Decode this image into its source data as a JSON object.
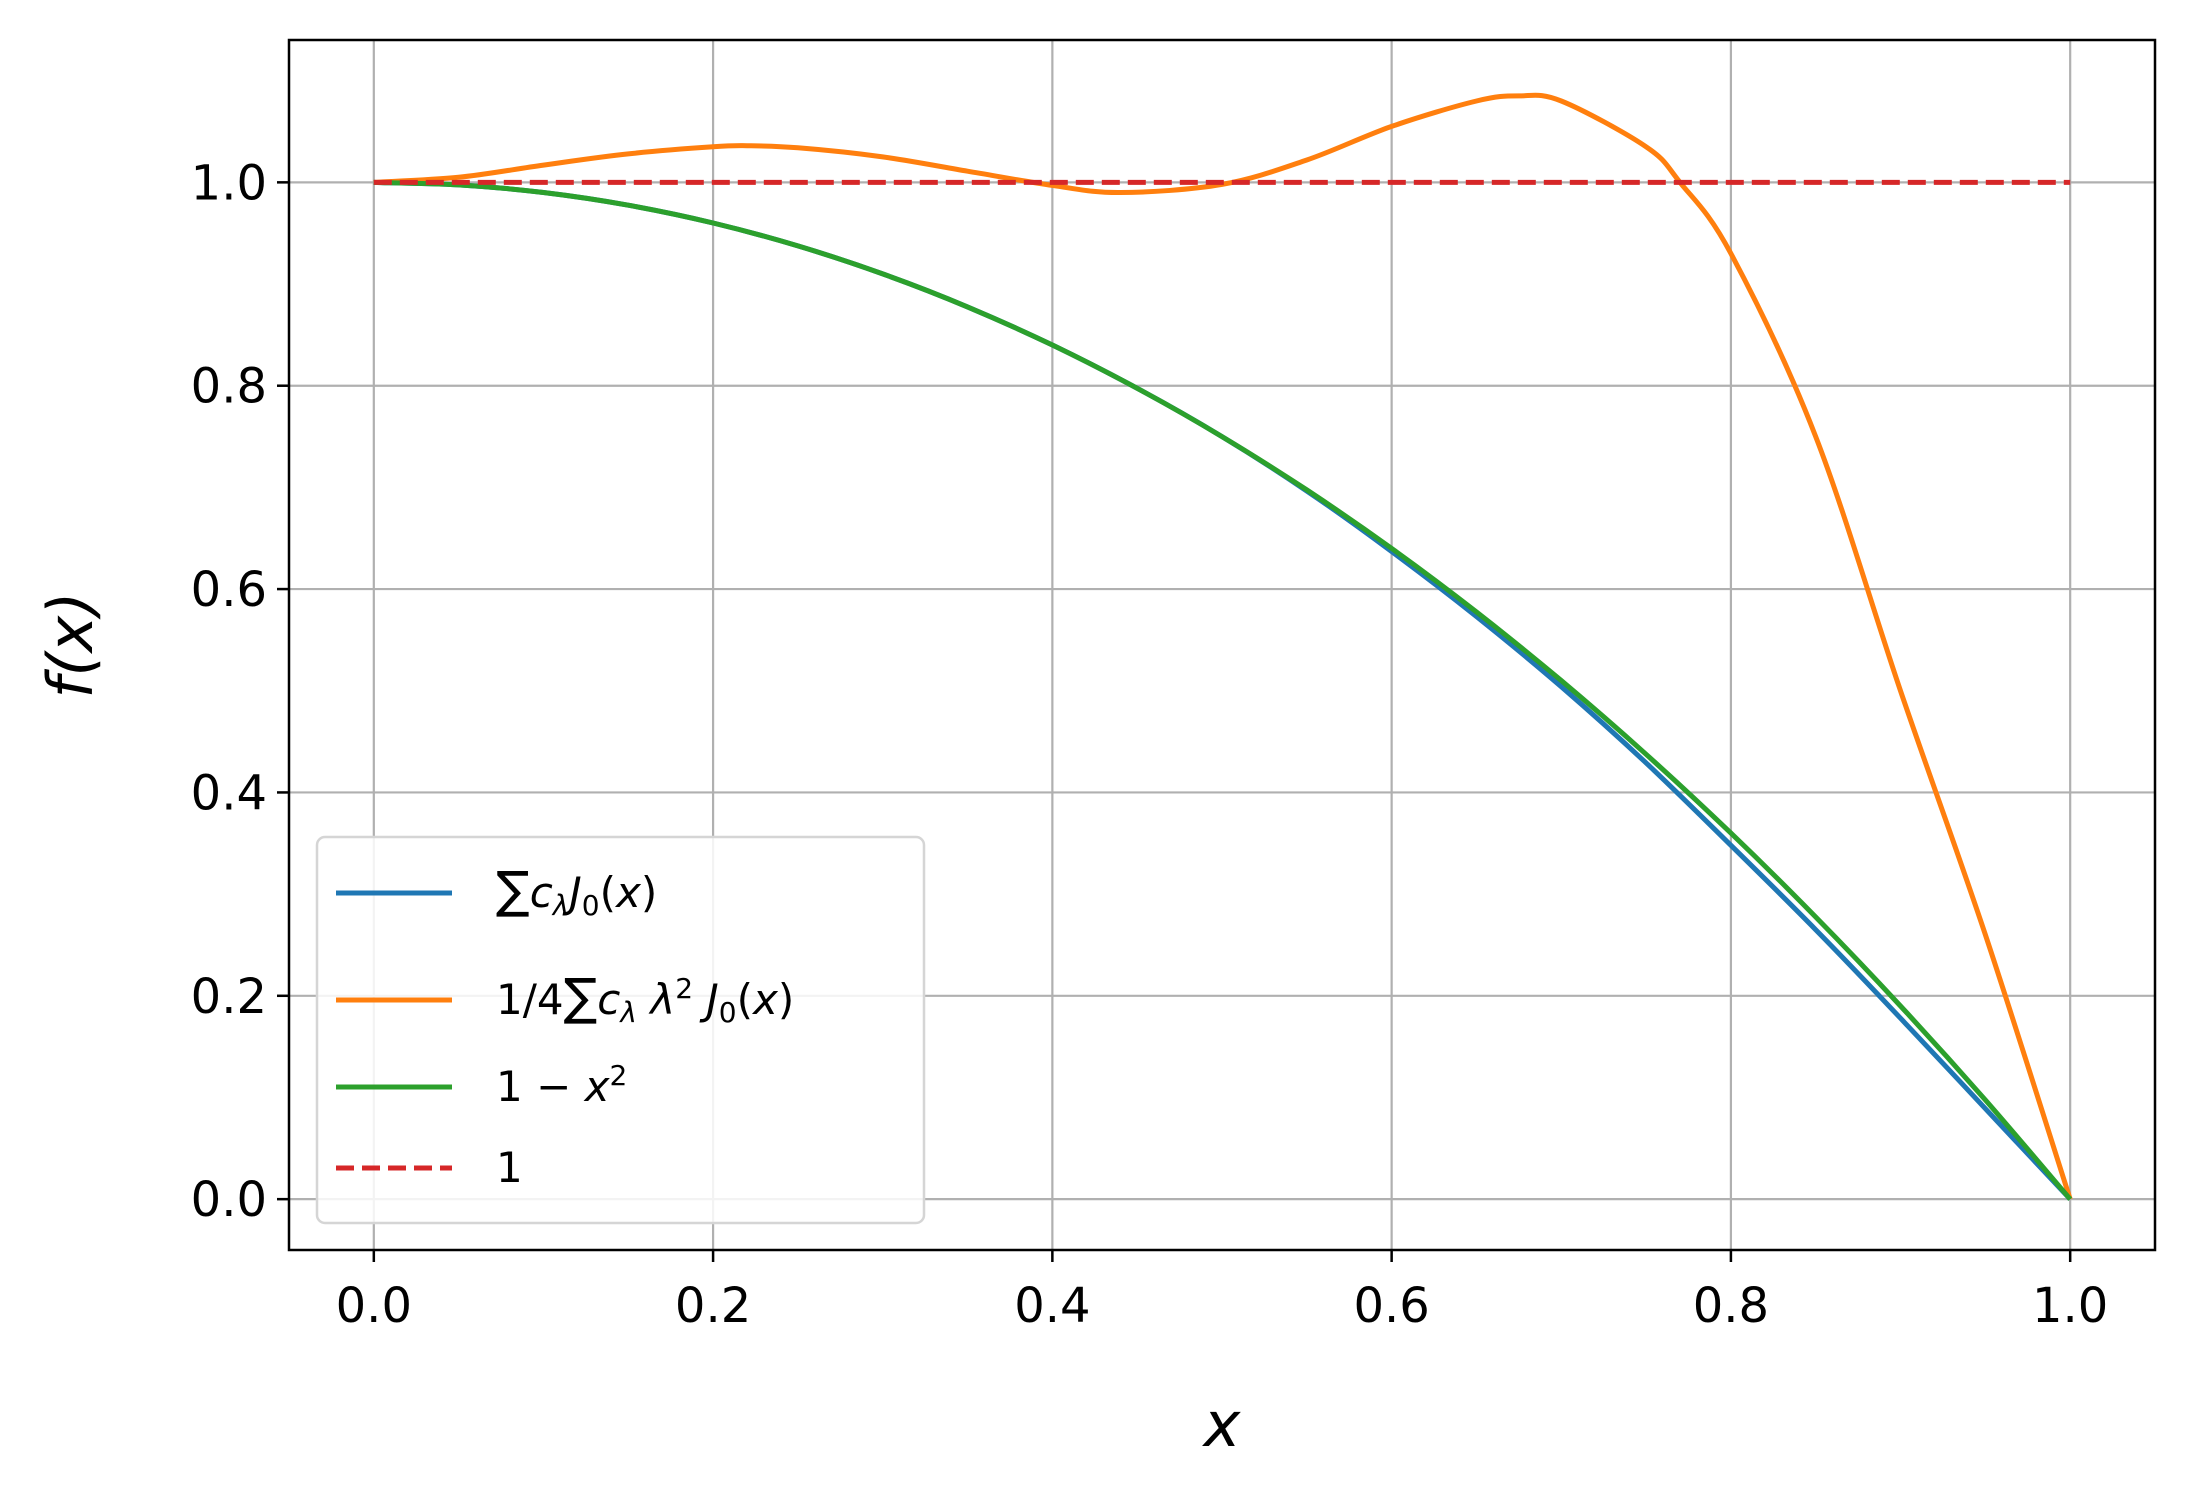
{
  "chart_data": {
    "type": "line",
    "xlabel": "x",
    "ylabel": "f(x)",
    "xlim": [
      -0.05,
      1.05
    ],
    "ylim": [
      -0.05,
      1.14
    ],
    "xticks": [
      0.0,
      0.2,
      0.4,
      0.6,
      0.8,
      1.0
    ],
    "yticks": [
      0.0,
      0.2,
      0.4,
      0.6,
      0.8,
      1.0
    ],
    "xtick_labels": [
      "0.0",
      "0.2",
      "0.4",
      "0.6",
      "0.8",
      "1.0"
    ],
    "ytick_labels": [
      "0.0",
      "0.2",
      "0.4",
      "0.6",
      "0.8",
      "1.0"
    ],
    "grid": true,
    "legend_position": "lower-left",
    "series": [
      {
        "name": "∑c_λ J_0(x)",
        "color": "#1f77b4",
        "style": "solid",
        "x": [
          0.0,
          0.05,
          0.1,
          0.15,
          0.2,
          0.25,
          0.3,
          0.35,
          0.4,
          0.45,
          0.5,
          0.55,
          0.6,
          0.65,
          0.7,
          0.75,
          0.8,
          0.85,
          0.9,
          0.95,
          1.0
        ],
        "y": [
          1.0,
          0.9975,
          0.99,
          0.9775,
          0.96,
          0.9375,
          0.91,
          0.8775,
          0.84,
          0.7975,
          0.75,
          0.6965,
          0.637,
          0.573,
          0.504,
          0.429,
          0.348,
          0.265,
          0.178,
          0.089,
          0.0
        ]
      },
      {
        "name": "1/4 ∑c_λ λ² J_0(x)",
        "color": "#ff7f0e",
        "style": "solid",
        "x": [
          0.0,
          0.05,
          0.1,
          0.15,
          0.2,
          0.22,
          0.25,
          0.3,
          0.35,
          0.4,
          0.44,
          0.5,
          0.55,
          0.6,
          0.65,
          0.675,
          0.7,
          0.75,
          0.77,
          0.8,
          0.85,
          0.9,
          0.95,
          1.0
        ],
        "y": [
          1.0,
          1.005,
          1.017,
          1.028,
          1.035,
          1.036,
          1.034,
          1.025,
          1.011,
          0.997,
          0.99,
          0.998,
          1.022,
          1.055,
          1.08,
          1.085,
          1.08,
          1.035,
          1.0,
          0.93,
          0.75,
          0.5,
          0.26,
          0.0
        ]
      },
      {
        "name": "1 − x²",
        "color": "#2ca02c",
        "style": "solid",
        "x": [
          0.0,
          0.05,
          0.1,
          0.15,
          0.2,
          0.25,
          0.3,
          0.35,
          0.4,
          0.45,
          0.5,
          0.55,
          0.6,
          0.65,
          0.7,
          0.75,
          0.8,
          0.85,
          0.9,
          0.95,
          1.0
        ],
        "y": [
          1.0,
          0.9975,
          0.99,
          0.9775,
          0.96,
          0.9375,
          0.91,
          0.8775,
          0.84,
          0.7975,
          0.75,
          0.6975,
          0.64,
          0.5775,
          0.51,
          0.4375,
          0.36,
          0.2775,
          0.19,
          0.0975,
          0.0
        ]
      },
      {
        "name": "1",
        "color": "#d62728",
        "style": "dashed",
        "x": [
          0.0,
          1.0
        ],
        "y": [
          1.0,
          1.0
        ]
      }
    ]
  }
}
